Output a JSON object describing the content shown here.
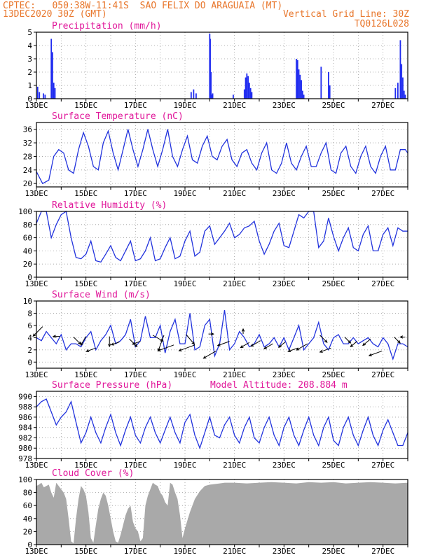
{
  "header": {
    "line1": "CPTEC:   050:38W-11:41S  SAO FELIX DO ARAGUAIA (MT)",
    "line2": "13DEC2020 30Z (GMT)",
    "grid_note": "Vertical Grid Line: 30Z",
    "code": "TQ0126L028"
  },
  "colors": {
    "header": "#e8762b",
    "title": "#e0179a",
    "line": "#2233dd",
    "bar": "#1f2bf0",
    "cloud": "#a9a9a9",
    "grid": "#9a9a9a"
  },
  "chart_data": [
    {
      "type": "bar",
      "title": "Precipitation (mm/h)",
      "ylim": [
        0,
        5
      ],
      "yticks": [
        "0",
        "1",
        "2",
        "3",
        "4",
        "5"
      ],
      "xticks": [
        "13DEC",
        "15DEC",
        "17DEC",
        "19DEC",
        "21DEC",
        "23DEC",
        "25DEC",
        "27DEC"
      ],
      "x_days": [
        13.05,
        13.12,
        13.28,
        13.35,
        13.6,
        13.65,
        13.7,
        13.75,
        19.25,
        19.35,
        19.45,
        20.0,
        20.02,
        20.05,
        20.08,
        20.12,
        20.95,
        21.4,
        21.45,
        21.5,
        21.55,
        21.6,
        21.65,
        21.7,
        23.5,
        23.55,
        23.6,
        23.65,
        23.7,
        23.75,
        23.8,
        24.5,
        24.8,
        24.85,
        27.5,
        27.6,
        27.7,
        27.75,
        27.8,
        27.85,
        27.9
      ],
      "values": [
        0.9,
        0.5,
        0.4,
        0.3,
        4.5,
        3.5,
        1.2,
        0.8,
        0.5,
        0.7,
        0.4,
        4.9,
        4.5,
        2.0,
        0.3,
        0.4,
        0.3,
        0.7,
        1.6,
        1.9,
        1.7,
        1.2,
        0.8,
        0.5,
        3.0,
        2.9,
        2.2,
        1.8,
        1.4,
        0.6,
        0.3,
        2.4,
        2.0,
        1.0,
        0.8,
        1.2,
        4.4,
        2.6,
        1.6,
        0.6,
        0.3
      ]
    },
    {
      "type": "line",
      "title": "Surface Temperature (nC)",
      "ylim": [
        19,
        38
      ],
      "yticks": [
        "20",
        "24",
        "28",
        "32",
        "36"
      ],
      "xticks": [
        "13DEC",
        "15DEC",
        "17DEC",
        "19DEC",
        "21DEC",
        "23DEC",
        "25DEC",
        "27DEC"
      ],
      "x": [
        13,
        13.25,
        13.5,
        13.7,
        13.9,
        14.1,
        14.3,
        14.5,
        14.7,
        14.9,
        15.1,
        15.3,
        15.5,
        15.7,
        15.9,
        16.1,
        16.3,
        16.5,
        16.7,
        16.9,
        17.1,
        17.3,
        17.5,
        17.7,
        17.9,
        18.1,
        18.3,
        18.5,
        18.7,
        18.9,
        19.1,
        19.3,
        19.5,
        19.7,
        19.9,
        20.1,
        20.3,
        20.5,
        20.7,
        20.9,
        21.1,
        21.3,
        21.5,
        21.7,
        21.9,
        22.1,
        22.3,
        22.5,
        22.7,
        22.9,
        23.1,
        23.3,
        23.5,
        23.7,
        23.9,
        24.1,
        24.3,
        24.5,
        24.7,
        24.9,
        25.1,
        25.3,
        25.5,
        25.7,
        25.9,
        26.1,
        26.3,
        26.5,
        26.7,
        26.9,
        27.1,
        27.3,
        27.5,
        27.7,
        27.9,
        28
      ],
      "values": [
        23.5,
        20,
        21,
        28,
        30,
        29,
        24,
        23,
        30,
        35,
        31,
        25,
        24,
        32,
        35.5,
        29,
        24,
        30,
        36,
        30,
        25,
        30,
        36,
        30,
        25,
        30,
        36,
        28,
        25,
        30,
        34,
        27,
        26,
        31,
        34,
        28,
        27,
        31,
        33,
        27,
        25,
        29,
        30,
        26,
        24,
        29,
        32,
        24,
        23,
        26,
        32,
        26,
        24,
        28,
        31,
        25,
        25,
        29,
        32,
        24,
        23,
        29,
        31,
        25,
        23,
        28,
        31,
        25,
        23,
        28,
        31,
        24,
        24,
        30,
        30,
        29
      ],
      "minor": [
        20.5,
        20.9,
        20.4,
        20.8,
        20.3,
        20.75,
        22.0,
        22.35,
        22.05,
        22.45,
        26.8,
        26.9,
        26.95
      ]
    },
    {
      "type": "line",
      "title": "Relative Humidity (%)",
      "ylim": [
        0,
        100
      ],
      "yticks": [
        "0",
        "20",
        "40",
        "60",
        "80",
        "100"
      ],
      "xticks": [
        "13DEC",
        "15DEC",
        "17DEC",
        "19DEC",
        "21DEC",
        "23DEC",
        "25DEC",
        "27DEC"
      ],
      "x": [
        13,
        13.2,
        13.4,
        13.6,
        13.8,
        14,
        14.2,
        14.4,
        14.6,
        14.8,
        15,
        15.2,
        15.4,
        15.6,
        15.8,
        16,
        16.2,
        16.4,
        16.6,
        16.8,
        17,
        17.2,
        17.4,
        17.6,
        17.8,
        18,
        18.2,
        18.4,
        18.6,
        18.8,
        19,
        19.2,
        19.4,
        19.6,
        19.8,
        20,
        20.2,
        20.4,
        20.6,
        20.8,
        21,
        21.2,
        21.4,
        21.6,
        21.8,
        22,
        22.2,
        22.4,
        22.6,
        22.8,
        23,
        23.2,
        23.4,
        23.6,
        23.8,
        24,
        24.2,
        24.4,
        24.6,
        24.8,
        25,
        25.2,
        25.4,
        25.6,
        25.8,
        26,
        26.2,
        26.4,
        26.6,
        26.8,
        27,
        27.2,
        27.4,
        27.6,
        27.8,
        28
      ],
      "values": [
        82,
        100,
        100,
        60,
        80,
        95,
        100,
        60,
        30,
        28,
        35,
        55,
        25,
        23,
        35,
        48,
        30,
        25,
        40,
        55,
        25,
        28,
        40,
        60,
        25,
        28,
        45,
        60,
        28,
        32,
        55,
        70,
        32,
        38,
        70,
        78,
        50,
        60,
        70,
        82,
        60,
        65,
        75,
        78,
        85,
        55,
        35,
        50,
        70,
        82,
        48,
        45,
        70,
        95,
        90,
        100,
        100,
        45,
        55,
        90,
        62,
        40,
        60,
        75,
        45,
        40,
        65,
        78,
        40,
        40,
        65,
        75,
        48,
        75,
        70,
        70
      ]
    },
    {
      "type": "line",
      "title": "Surface Wind (m/s)",
      "ylim": [
        -1,
        10
      ],
      "yticks": [
        "0",
        "2",
        "4",
        "6",
        "8",
        "10"
      ],
      "xticks": [
        "13DEC",
        "15DEC",
        "17DEC",
        "19DEC",
        "21DEC",
        "23DEC",
        "25DEC",
        "27DEC"
      ],
      "x": [
        13,
        13.2,
        13.4,
        13.6,
        13.8,
        14,
        14.2,
        14.4,
        14.6,
        14.8,
        15,
        15.2,
        15.4,
        15.6,
        15.8,
        16,
        16.2,
        16.4,
        16.6,
        16.8,
        17,
        17.2,
        17.4,
        17.6,
        17.8,
        18,
        18.2,
        18.4,
        18.6,
        18.8,
        19,
        19.2,
        19.4,
        19.6,
        19.8,
        20,
        20.2,
        20.4,
        20.6,
        20.8,
        21,
        21.2,
        21.4,
        21.6,
        21.8,
        22,
        22.2,
        22.4,
        22.6,
        22.8,
        23,
        23.2,
        23.4,
        23.6,
        23.8,
        24,
        24.2,
        24.4,
        24.6,
        24.8,
        25,
        25.2,
        25.4,
        25.6,
        25.8,
        26,
        26.2,
        26.4,
        26.6,
        26.8,
        27,
        27.2,
        27.4,
        27.6,
        27.8,
        28
      ],
      "values": [
        4,
        3.5,
        5,
        4,
        3,
        4.5,
        2,
        3,
        3,
        2.5,
        4,
        5,
        2,
        3.5,
        4.5,
        6,
        3,
        3.5,
        4.5,
        7,
        2.5,
        3.5,
        7.5,
        4,
        4,
        6,
        1.5,
        5,
        7,
        3,
        3,
        8,
        2,
        2.5,
        6,
        7,
        1,
        3,
        8.5,
        2,
        3,
        5,
        4,
        2.5,
        3,
        4.5,
        2.5,
        3,
        4,
        2.5,
        4,
        2,
        4,
        6,
        2,
        3,
        4,
        6.5,
        3,
        2,
        4,
        4.5,
        3,
        3,
        4,
        3,
        3.5,
        4,
        3,
        2.5,
        4,
        3,
        0.5,
        3,
        3,
        2.5
      ],
      "arrows": [
        {
          "x": 13.25,
          "y": 5.8,
          "angle": 225,
          "len": 1.6
        },
        {
          "x": 13.95,
          "y": 4.2,
          "angle": 180,
          "len": 0.8
        },
        {
          "x": 14.5,
          "y": 4.1,
          "angle": 315,
          "len": 1.2
        },
        {
          "x": 15.0,
          "y": 4.2,
          "angle": 240,
          "len": 1.2
        },
        {
          "x": 15.4,
          "y": 2.3,
          "angle": 200,
          "len": 1.2
        },
        {
          "x": 15.95,
          "y": 4.2,
          "angle": 270,
          "len": 1.2
        },
        {
          "x": 16.35,
          "y": 3.3,
          "angle": 200,
          "len": 1.0
        },
        {
          "x": 16.75,
          "y": 3.8,
          "angle": 315,
          "len": 1.3
        },
        {
          "x": 17.2,
          "y": 3.4,
          "angle": 200,
          "len": 1.0
        },
        {
          "x": 17.7,
          "y": 4.4,
          "angle": 330,
          "len": 1.4
        },
        {
          "x": 18.15,
          "y": 4.4,
          "angle": 250,
          "len": 2.0
        },
        {
          "x": 18.55,
          "y": 2.8,
          "angle": 200,
          "len": 2.0
        },
        {
          "x": 19.05,
          "y": 4.5,
          "angle": 310,
          "len": 1.5
        },
        {
          "x": 19.4,
          "y": 2.8,
          "angle": 200,
          "len": 2.0
        },
        {
          "x": 19.95,
          "y": 4.6,
          "angle": 0,
          "len": 0.6
        },
        {
          "x": 20.25,
          "y": 1.8,
          "angle": 210,
          "len": 1.7
        },
        {
          "x": 20.8,
          "y": 3.4,
          "angle": 200,
          "len": 1.5
        },
        {
          "x": 21.35,
          "y": 4.6,
          "angle": 90,
          "len": 0.6
        },
        {
          "x": 21.6,
          "y": 3.2,
          "angle": 210,
          "len": 1.2
        },
        {
          "x": 22.05,
          "y": 3.5,
          "angle": 210,
          "len": 1.3
        },
        {
          "x": 22.55,
          "y": 3.0,
          "angle": 210,
          "len": 1.2
        },
        {
          "x": 23.05,
          "y": 3.3,
          "angle": 220,
          "len": 1.0
        },
        {
          "x": 23.55,
          "y": 2.3,
          "angle": 200,
          "len": 1.2
        },
        {
          "x": 23.95,
          "y": 3.0,
          "angle": 210,
          "len": 1.5
        },
        {
          "x": 24.45,
          "y": 4.4,
          "angle": 315,
          "len": 1.2
        },
        {
          "x": 24.9,
          "y": 2.3,
          "angle": 200,
          "len": 1.4
        },
        {
          "x": 25.45,
          "y": 4.1,
          "angle": 315,
          "len": 1.0
        },
        {
          "x": 25.95,
          "y": 3.4,
          "angle": 220,
          "len": 1.0
        },
        {
          "x": 26.5,
          "y": 3.8,
          "angle": 220,
          "len": 1.2
        },
        {
          "x": 26.95,
          "y": 1.8,
          "angle": 200,
          "len": 1.6
        },
        {
          "x": 27.45,
          "y": 4.1,
          "angle": 315,
          "len": 1.0
        },
        {
          "x": 27.9,
          "y": 4.1,
          "angle": 180,
          "len": 0.6
        }
      ]
    },
    {
      "type": "line",
      "title": "Surface Pressure (hPa)",
      "note": "Model Altitude: 208.884 m",
      "ylim": [
        978,
        991
      ],
      "yticks": [
        "978",
        "980",
        "982",
        "984",
        "986",
        "988",
        "990"
      ],
      "xticks": [
        "13DEC",
        "15DEC",
        "17DEC",
        "19DEC",
        "21DEC",
        "23DEC",
        "25DEC",
        "27DEC"
      ],
      "x": [
        13,
        13.2,
        13.4,
        13.6,
        13.8,
        14,
        14.2,
        14.4,
        14.6,
        14.8,
        15,
        15.2,
        15.4,
        15.6,
        15.8,
        16,
        16.2,
        16.4,
        16.6,
        16.8,
        17,
        17.2,
        17.4,
        17.6,
        17.8,
        18,
        18.2,
        18.4,
        18.6,
        18.8,
        19,
        19.2,
        19.4,
        19.6,
        19.8,
        20,
        20.2,
        20.4,
        20.6,
        20.8,
        21,
        21.2,
        21.4,
        21.6,
        21.8,
        22,
        22.2,
        22.4,
        22.6,
        22.8,
        23,
        23.2,
        23.4,
        23.6,
        23.8,
        24,
        24.2,
        24.4,
        24.6,
        24.8,
        25,
        25.2,
        25.4,
        25.6,
        25.8,
        26,
        26.2,
        26.4,
        26.6,
        26.8,
        27,
        27.2,
        27.4,
        27.6,
        27.8,
        28
      ],
      "values": [
        988,
        989,
        989.5,
        987,
        984.5,
        986,
        987,
        989,
        985,
        981,
        983,
        986,
        983,
        981,
        984,
        986.5,
        983,
        980.5,
        983.5,
        986,
        982.5,
        981,
        984,
        986,
        983,
        981,
        983.5,
        986,
        983,
        981,
        985,
        986.5,
        982.5,
        980,
        983,
        986,
        982.5,
        982,
        984.5,
        986,
        982.5,
        981,
        984,
        986,
        982,
        981,
        984,
        986,
        982.5,
        980.5,
        984,
        986,
        982.5,
        980.5,
        983.5,
        986,
        982.5,
        980.5,
        984,
        986,
        981.5,
        980.5,
        984,
        986,
        982.5,
        980.5,
        983.5,
        986,
        982.5,
        980.5,
        983.5,
        985.5,
        983,
        980.5,
        980.5,
        983
      ]
    },
    {
      "type": "area",
      "title": "Cloud Cover (%)",
      "ylim": [
        0,
        100
      ],
      "yticks": [
        "0",
        "20",
        "40",
        "60",
        "80",
        "100"
      ],
      "xticks": [
        "13DEC",
        "15DEC",
        "17DEC",
        "19DEC",
        "21DEC",
        "23DEC",
        "25DEC",
        "27DEC"
      ],
      "x": [
        13,
        13.1,
        13.2,
        13.3,
        13.4,
        13.5,
        13.6,
        13.7,
        13.8,
        13.9,
        14,
        14.1,
        14.2,
        14.3,
        14.4,
        14.5,
        14.6,
        14.7,
        14.8,
        14.9,
        15,
        15.1,
        15.2,
        15.3,
        15.4,
        15.5,
        15.6,
        15.7,
        15.8,
        15.9,
        16,
        16.1,
        16.2,
        16.3,
        16.4,
        16.5,
        16.6,
        16.7,
        16.8,
        16.9,
        17,
        17.1,
        17.2,
        17.3,
        17.4,
        17.5,
        17.6,
        17.7,
        17.8,
        17.9,
        18,
        18.1,
        18.2,
        18.3,
        18.4,
        18.5,
        18.6,
        18.7,
        18.8,
        18.9,
        19,
        19.2,
        19.4,
        19.6,
        19.8,
        20,
        20.2,
        20.4,
        20.6,
        20.8,
        21,
        21.5,
        22,
        22.5,
        23,
        23.5,
        24,
        24.5,
        25,
        25.5,
        26,
        26.5,
        27,
        27.5,
        28
      ],
      "values": [
        90,
        92,
        95,
        88,
        90,
        92,
        80,
        72,
        95,
        90,
        85,
        80,
        70,
        40,
        5,
        2,
        40,
        70,
        90,
        85,
        75,
        50,
        10,
        3,
        30,
        55,
        70,
        80,
        75,
        60,
        40,
        20,
        5,
        3,
        15,
        30,
        45,
        55,
        60,
        35,
        25,
        20,
        5,
        10,
        60,
        75,
        85,
        95,
        92,
        90,
        80,
        75,
        65,
        60,
        95,
        92,
        80,
        70,
        45,
        10,
        25,
        50,
        70,
        82,
        90,
        92,
        93,
        94,
        95,
        95,
        95,
        94,
        95,
        96,
        95,
        94,
        96,
        95,
        96,
        94,
        95,
        96,
        95,
        94,
        95
      ]
    }
  ]
}
